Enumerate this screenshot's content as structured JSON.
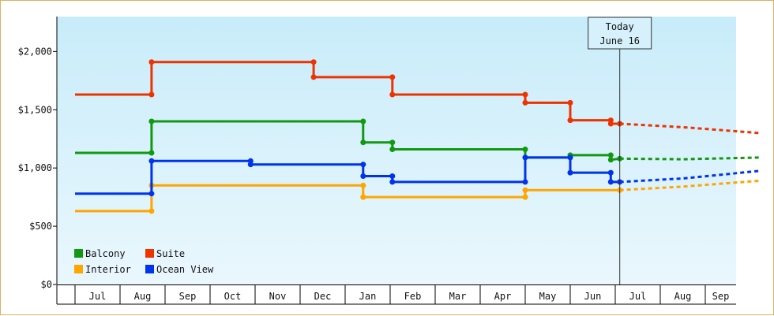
{
  "chart_data": {
    "type": "line",
    "step": true,
    "title": "",
    "xlabel": "",
    "ylabel": "",
    "ylim": [
      0,
      2300
    ],
    "y_ticks": [
      0,
      500,
      1000,
      1500,
      2000
    ],
    "y_tick_labels": [
      "$0",
      "$500",
      "$1,000",
      "$1,500",
      "$2,000"
    ],
    "x_tick_labels": [
      "Jul",
      "Aug",
      "Sep",
      "Oct",
      "Nov",
      "Dec",
      "Jan",
      "Feb",
      "Mar",
      "Apr",
      "May",
      "Jun",
      "Jul",
      "Aug",
      "Sep"
    ],
    "x_range_months": [
      0,
      15.2
    ],
    "grid": false,
    "legend_position": "bottom-left",
    "background_gradient": [
      "#c8ecfa",
      "#eaf7fd"
    ],
    "today": {
      "month": 12.1,
      "line1": "Today",
      "line2": "June 16"
    },
    "series": [
      {
        "name": "Balcony",
        "color": "#119911",
        "points": [
          [
            0,
            1130
          ],
          [
            1.7,
            1130
          ],
          [
            1.7,
            1400
          ],
          [
            6.4,
            1400
          ],
          [
            6.4,
            1220
          ],
          [
            7.05,
            1220
          ],
          [
            7.05,
            1160
          ],
          [
            10.0,
            1160
          ],
          [
            10.0,
            1090
          ],
          [
            11.0,
            1090
          ],
          [
            11.0,
            1110
          ],
          [
            11.9,
            1110
          ],
          [
            11.9,
            1070
          ],
          [
            12.1,
            1080
          ]
        ],
        "forecast": [
          [
            12.1,
            1080
          ],
          [
            13.5,
            1075
          ],
          [
            15.2,
            1090
          ]
        ]
      },
      {
        "name": "Suite",
        "color": "#ee3300",
        "points": [
          [
            0,
            1630
          ],
          [
            1.7,
            1630
          ],
          [
            1.7,
            1910
          ],
          [
            5.3,
            1910
          ],
          [
            5.3,
            1780
          ],
          [
            7.05,
            1780
          ],
          [
            7.05,
            1630
          ],
          [
            10.0,
            1630
          ],
          [
            10.0,
            1560
          ],
          [
            11.0,
            1560
          ],
          [
            11.0,
            1410
          ],
          [
            11.9,
            1410
          ],
          [
            11.9,
            1380
          ],
          [
            12.1,
            1380
          ]
        ],
        "forecast": [
          [
            12.1,
            1380
          ],
          [
            13.5,
            1350
          ],
          [
            15.2,
            1300
          ]
        ]
      },
      {
        "name": "Interior",
        "color": "#ffa500",
        "points": [
          [
            0,
            630
          ],
          [
            1.7,
            630
          ],
          [
            1.7,
            850
          ],
          [
            6.4,
            850
          ],
          [
            6.4,
            750
          ],
          [
            10.0,
            750
          ],
          [
            10.0,
            810
          ],
          [
            12.1,
            810
          ]
        ],
        "forecast": [
          [
            12.1,
            810
          ],
          [
            13.5,
            840
          ],
          [
            15.2,
            890
          ]
        ]
      },
      {
        "name": "Ocean View",
        "color": "#0033ee",
        "points": [
          [
            0,
            780
          ],
          [
            1.7,
            780
          ],
          [
            1.7,
            1060
          ],
          [
            3.9,
            1060
          ],
          [
            3.9,
            1030
          ],
          [
            6.4,
            1030
          ],
          [
            6.4,
            930
          ],
          [
            7.05,
            930
          ],
          [
            7.05,
            880
          ],
          [
            10.0,
            880
          ],
          [
            10.0,
            1090
          ],
          [
            11.0,
            1090
          ],
          [
            11.0,
            960
          ],
          [
            11.9,
            960
          ],
          [
            11.9,
            880
          ],
          [
            12.1,
            880
          ]
        ],
        "forecast": [
          [
            12.1,
            880
          ],
          [
            13.5,
            910
          ],
          [
            15.2,
            975
          ]
        ]
      }
    ],
    "legend_order": [
      "Balcony",
      "Suite",
      "Interior",
      "Ocean View"
    ]
  }
}
